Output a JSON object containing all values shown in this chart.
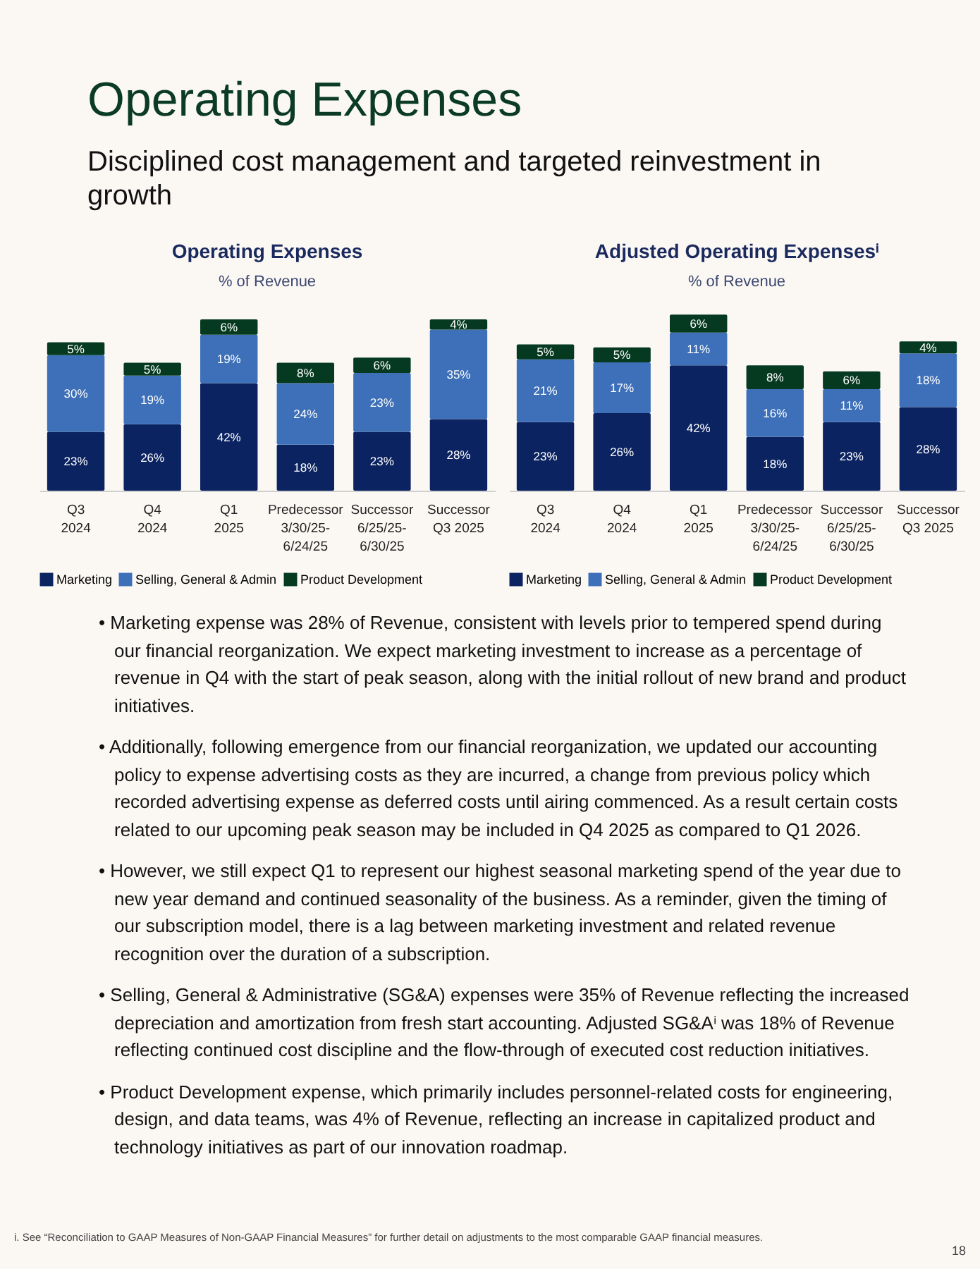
{
  "chart_data": [
    {
      "type": "other",
      "title": "Operating Expenses",
      "subtitle": "Disciplined cost management and targeted reinvestment in growth"
    },
    {
      "type": "bar",
      "title": "Operating Expenses",
      "subtitle": "% of Revenue",
      "stacked": true,
      "legend": "bottom",
      "tick_labels": "x",
      "categories": [
        "Q3\n2024",
        "Q4\n2024",
        "Q1\n2025",
        "Predecessor\n3/30/25-\n6/24/25",
        "Successor\n6/25/25-\n6/30/25",
        "Successor\nQ3 2025"
      ],
      "series": [
        {
          "name": "Marketing",
          "color": "#0b2361",
          "values": [
            23,
            26,
            42,
            18,
            23,
            28
          ],
          "value_labels": [
            "23%",
            "26%",
            "42%",
            "18%",
            "23%",
            "28%"
          ]
        },
        {
          "name": "Selling, General & Admin",
          "color": "#3d70b8",
          "values": [
            30,
            19,
            19,
            24,
            23,
            35
          ],
          "value_labels": [
            "30%",
            "19%",
            "19%",
            "24%",
            "23%",
            "35%"
          ]
        },
        {
          "name": "Product Development",
          "color": "#063a20",
          "values": [
            5,
            5,
            6,
            8,
            6,
            4
          ],
          "value_labels": [
            "5%",
            "5%",
            "6%",
            "8%",
            "6%",
            "4%"
          ]
        }
      ]
    },
    {
      "type": "bar",
      "title": "Adjusted Operating Expensesⁱ",
      "subtitle": "% of Revenue",
      "stacked": true,
      "legend": "bottom",
      "tick_labels": "x",
      "categories": [
        "Q3\n2024",
        "Q4\n2024",
        "Q1\n2025",
        "Predecessor\n3/30/25-\n6/24/25",
        "Successor\n6/25/25-\n6/30/25",
        "Successor\nQ3 2025"
      ],
      "series": [
        {
          "name": "Marketing",
          "color": "#0b2361",
          "values": [
            23,
            26,
            42,
            18,
            23,
            28
          ],
          "value_labels": [
            "23%",
            "26%",
            "42%",
            "18%",
            "23%",
            "28%"
          ]
        },
        {
          "name": "Selling, General & Admin",
          "color": "#3d70b8",
          "values": [
            21,
            17,
            11,
            16,
            11,
            18
          ],
          "value_labels": [
            "21%",
            "17%",
            "11%",
            "16%",
            "11%",
            "18%"
          ]
        },
        {
          "name": "Product Development",
          "color": "#063a20",
          "values": [
            5,
            5,
            6,
            8,
            6,
            4
          ],
          "value_labels": [
            "5%",
            "5%",
            "6%",
            "8%",
            "6%",
            "4%"
          ]
        }
      ]
    },
    {
      "type": "other",
      "annotations": [
        "• Marketing expense was 28% of Revenue, consistent with levels prior to tempered spend during our financial reorganization. We expect marketing investment to increase as a percentage of revenue in Q4 with the start of peak season, along with the initial rollout of new brand and product initiatives.",
        "• Additionally, following emergence from our financial reorganization, we updated our accounting policy to expense advertising costs as they are incurred, a change from previous policy which recorded advertising expense as deferred costs until airing commenced.  As a result certain costs related to our upcoming peak season may be included in Q4 2025 as compared to Q1 2026.",
        "• However, we still expect Q1 to represent our highest seasonal marketing spend of the year due to new year demand and continued seasonality of the business. As a reminder, given the timing of our subscription model, there is a lag between marketing investment and related revenue recognition over the duration of a subscription.",
        "• Selling, General & Administrative (SG&A) expenses were 35% of Revenue reflecting the increased depreciation and amortization from fresh start accounting. Adjusted SG&Aⁱ was 18% of Revenue reflecting continued cost discipline and the flow-through of executed cost reduction initiatives.",
        "• Product Development expense, which primarily includes personnel-related costs for engineering, design, and data teams, was 4% of Revenue, reflecting an increase in capitalized product and technology initiatives as part of our innovation roadmap.",
        "i. See “Reconciliation to GAAP Measures of Non-GAAP Financial Measures” for further detail on adjustments to the most comparable GAAP financial measures.",
        "18"
      ]
    }
  ]
}
